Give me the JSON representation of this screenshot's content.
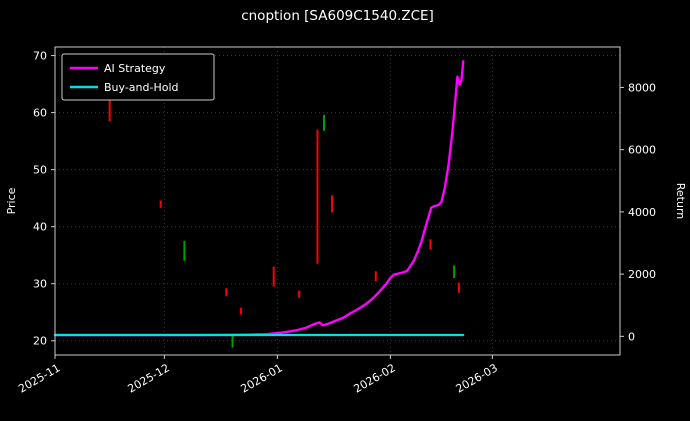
{
  "chart_data": {
    "type": "mixed",
    "title": "cnoption [SA609C1540.ZCE]",
    "left_axis": {
      "label": "Price",
      "ticks": [
        20,
        30,
        40,
        50,
        60,
        70
      ],
      "lim": [
        17.5,
        71.5
      ]
    },
    "right_axis": {
      "label": "Return",
      "ticks": [
        0,
        2000,
        4000,
        6000,
        8000
      ],
      "lim": [
        -600,
        9300
      ]
    },
    "x_axis": {
      "tick_labels": [
        "2025-11",
        "2025-12",
        "2026-01",
        "2026-02",
        "2026-03"
      ],
      "tick_days": [
        0,
        30,
        61,
        92,
        120
      ],
      "lim": [
        0,
        155
      ]
    },
    "legend": [
      {
        "label": "AI Strategy",
        "color": "#ff00ff"
      },
      {
        "label": "Buy-and-Hold",
        "color": "#00e0e6"
      }
    ],
    "series": [
      {
        "name": "AI Strategy",
        "color": "#ff00ff",
        "width": 2.4,
        "points": [
          [
            0,
            21
          ],
          [
            20,
            21
          ],
          [
            40,
            21
          ],
          [
            52,
            21.05
          ],
          [
            58,
            21.15
          ],
          [
            62,
            21.4
          ],
          [
            66,
            21.8
          ],
          [
            69,
            22.3
          ],
          [
            71,
            22.9
          ],
          [
            72.5,
            23.2
          ],
          [
            73.5,
            22.7
          ],
          [
            75,
            23.0
          ],
          [
            77,
            23.5
          ],
          [
            79,
            24.0
          ],
          [
            81,
            24.8
          ],
          [
            83,
            25.5
          ],
          [
            85,
            26.3
          ],
          [
            87,
            27.3
          ],
          [
            89,
            28.6
          ],
          [
            91,
            30.1
          ],
          [
            92,
            31.0
          ],
          [
            93,
            31.6
          ],
          [
            95,
            31.9
          ],
          [
            96.5,
            32.2
          ],
          [
            97.5,
            33.1
          ],
          [
            98.5,
            34.1
          ],
          [
            99.5,
            35.6
          ],
          [
            100.5,
            37.3
          ],
          [
            101.5,
            39.6
          ],
          [
            102.5,
            41.8
          ],
          [
            103.2,
            43.3
          ],
          [
            104,
            43.6
          ],
          [
            105.2,
            43.8
          ],
          [
            106,
            44.3
          ],
          [
            107,
            47.0
          ],
          [
            108,
            51.0
          ],
          [
            109,
            56.5
          ],
          [
            109.8,
            62.0
          ],
          [
            110.4,
            66.3
          ],
          [
            111,
            64.9
          ],
          [
            111.5,
            65.6
          ],
          [
            112,
            69.0
          ]
        ]
      },
      {
        "name": "Buy-and-Hold",
        "color": "#00e0e6",
        "width": 2.2,
        "points": [
          [
            0,
            21
          ],
          [
            112,
            21
          ]
        ]
      }
    ],
    "candles": [
      {
        "d": 15,
        "lo": 58.5,
        "hi": 62.3,
        "dir": "down"
      },
      {
        "d": 29,
        "lo": 43.3,
        "hi": 44.6,
        "dir": "down"
      },
      {
        "d": 35.5,
        "lo": 34.0,
        "hi": 37.5,
        "dir": "up"
      },
      {
        "d": 47,
        "lo": 27.8,
        "hi": 29.2,
        "dir": "down"
      },
      {
        "d": 48.7,
        "lo": 18.8,
        "hi": 21.0,
        "dir": "up"
      },
      {
        "d": 51,
        "lo": 24.6,
        "hi": 25.8,
        "dir": "down"
      },
      {
        "d": 60,
        "lo": 29.5,
        "hi": 33.0,
        "dir": "down"
      },
      {
        "d": 67,
        "lo": 27.5,
        "hi": 28.8,
        "dir": "down"
      },
      {
        "d": 72,
        "lo": 33.5,
        "hi": 57.0,
        "dir": "down"
      },
      {
        "d": 73.8,
        "lo": 56.8,
        "hi": 59.6,
        "dir": "up"
      },
      {
        "d": 76,
        "lo": 42.5,
        "hi": 45.5,
        "dir": "down"
      },
      {
        "d": 88,
        "lo": 30.4,
        "hi": 32.2,
        "dir": "down"
      },
      {
        "d": 103,
        "lo": 36.0,
        "hi": 37.8,
        "dir": "down"
      },
      {
        "d": 109.5,
        "lo": 31.0,
        "hi": 33.2,
        "dir": "up"
      },
      {
        "d": 110.8,
        "lo": 28.4,
        "hi": 30.2,
        "dir": "down"
      }
    ],
    "colors": {
      "background": "#000000",
      "text": "#ffffff",
      "grid": "#ffffff",
      "frame": "#cccccc",
      "up": "#00a000",
      "down": "#ff0000"
    }
  }
}
